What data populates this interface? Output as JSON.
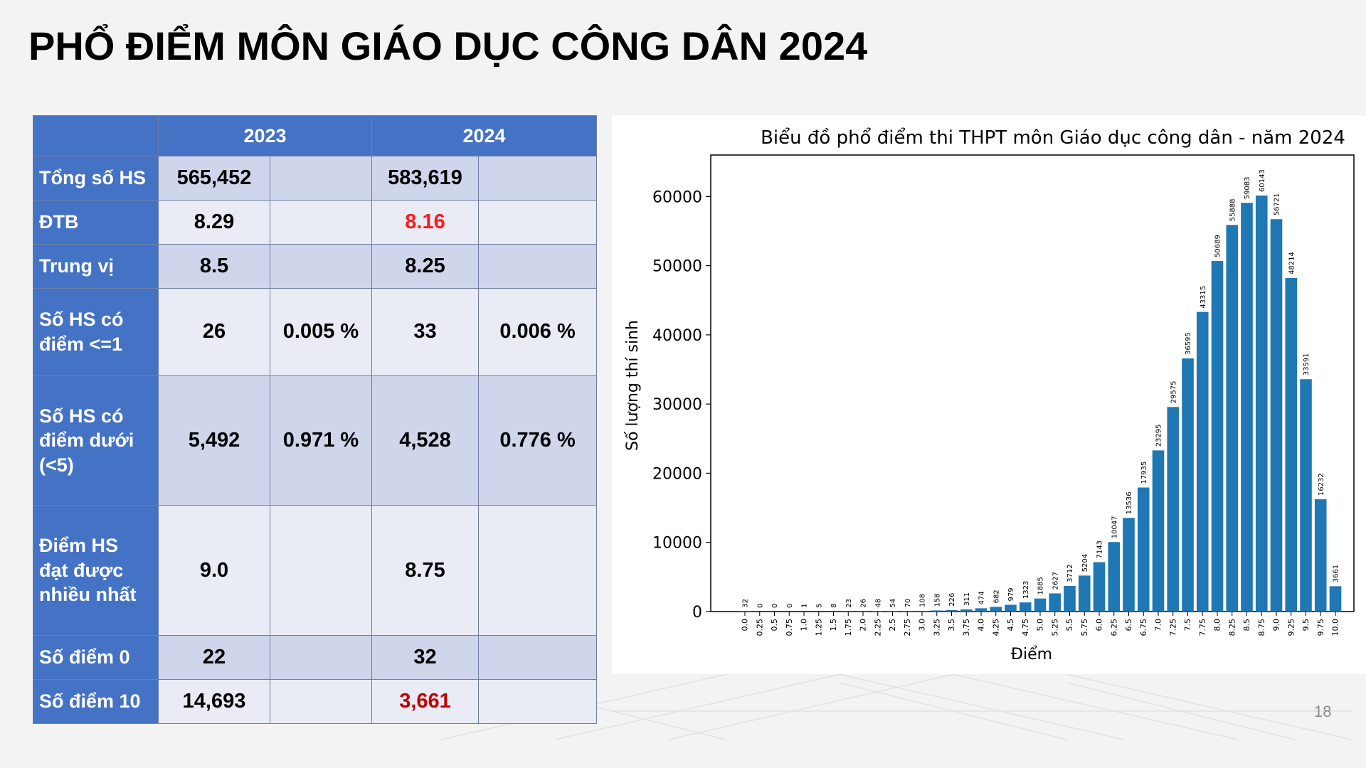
{
  "slide": {
    "title": "PHỔ ĐIỂM MÔN GIÁO DỤC CÔNG DÂN 2024",
    "page_number": "18"
  },
  "table": {
    "header": {
      "y2023": "2023",
      "y2024": "2024"
    },
    "rows": [
      {
        "label": "Tổng số HS",
        "v2023": "565,452",
        "p2023": "",
        "v2024": "583,619",
        "p2024": ""
      },
      {
        "label": "ĐTB",
        "v2023": "8.29",
        "p2023": "",
        "v2024": "8.16",
        "p2024": ""
      },
      {
        "label": "Trung vị",
        "v2023": "8.5",
        "p2023": "",
        "v2024": "8.25",
        "p2024": ""
      },
      {
        "label": "Số HS có điểm <=1",
        "v2023": "26",
        "p2023": "0.005 %",
        "v2024": "33",
        "p2024": "0.006 %"
      },
      {
        "label": "Số HS có điểm dưới (<5)",
        "v2023": "5,492",
        "p2023": "0.971 %",
        "v2024": "4,528",
        "p2024": "0.776 %"
      },
      {
        "label": "Điểm HS đạt được nhiều nhất",
        "v2023": "9.0",
        "p2023": "",
        "v2024": "8.75",
        "p2024": ""
      },
      {
        "label": "Số điểm 0",
        "v2023": "22",
        "p2023": "",
        "v2024": "32",
        "p2024": ""
      },
      {
        "label": "Số điểm 10",
        "v2023": "14,693",
        "p2023": "",
        "v2024": "3,661",
        "p2024": ""
      }
    ],
    "colors": {
      "header_bg": "#4472c4",
      "highlight_red": "#ff1a1a",
      "highlight_darkred": "#c00000"
    }
  },
  "chart_data": {
    "type": "bar",
    "title": "Biểu đồ phổ điểm thi THPT môn Giáo dục công dân - năm 2024",
    "xlabel": "Điểm",
    "ylabel": "Số lượng thí sinh",
    "categories": [
      "0.0",
      "0.25",
      "0.5",
      "0.75",
      "1.0",
      "1.25",
      "1.5",
      "1.75",
      "2.0",
      "2.25",
      "2.5",
      "2.75",
      "3.0",
      "3.25",
      "3.5",
      "3.75",
      "4.0",
      "4.25",
      "4.5",
      "4.75",
      "5.0",
      "5.25",
      "5.5",
      "5.75",
      "6.0",
      "6.25",
      "6.5",
      "6.75",
      "7.0",
      "7.25",
      "7.5",
      "7.75",
      "8.0",
      "8.25",
      "8.5",
      "8.75",
      "9.0",
      "9.25",
      "9.5",
      "9.75",
      "10.0"
    ],
    "values": [
      32,
      0,
      0,
      0,
      1,
      5,
      8,
      23,
      26,
      48,
      54,
      70,
      108,
      158,
      226,
      311,
      474,
      682,
      979,
      1323,
      1885,
      2627,
      3712,
      5204,
      7143,
      10047,
      13536,
      17935,
      23295,
      29575,
      36595,
      43315,
      50689,
      55888,
      59083,
      60143,
      56721,
      48214,
      33591,
      16232,
      3661
    ],
    "y_ticks": [
      "0",
      "10000",
      "20000",
      "30000",
      "40000",
      "50000",
      "60000"
    ],
    "ylim": [
      0,
      66000
    ],
    "bar_color": "#1f77b4",
    "grid": false,
    "data_labels": true
  }
}
